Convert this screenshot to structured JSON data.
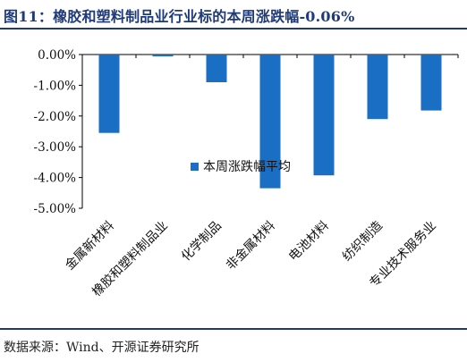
{
  "title": "图11：橡胶和塑料制品业行业标的本周涨跌幅-0.06%",
  "source": "数据来源：Wind、开源证券研究所",
  "chart_data": {
    "type": "bar",
    "categories": [
      "金属新材料",
      "橡胶和塑料制品业",
      "化学制品",
      "非金属材料",
      "电池材料",
      "纺织制造",
      "专业技术服务业"
    ],
    "series": [
      {
        "name": "本周涨跌幅平均",
        "values": [
          -2.55,
          -0.06,
          -0.9,
          -4.35,
          -3.93,
          -2.1,
          -1.82
        ],
        "color": "#1a6fc4"
      }
    ],
    "ylim": [
      -5.0,
      0.0
    ],
    "yticks": [
      0.0,
      -1.0,
      -2.0,
      -3.0,
      -4.0,
      -5.0
    ],
    "ytick_labels": [
      "0.00%",
      "-1.00%",
      "-2.00%",
      "-3.00%",
      "-4.00%",
      "-5.00%"
    ],
    "grid": false,
    "legend_position": "inside-center"
  }
}
